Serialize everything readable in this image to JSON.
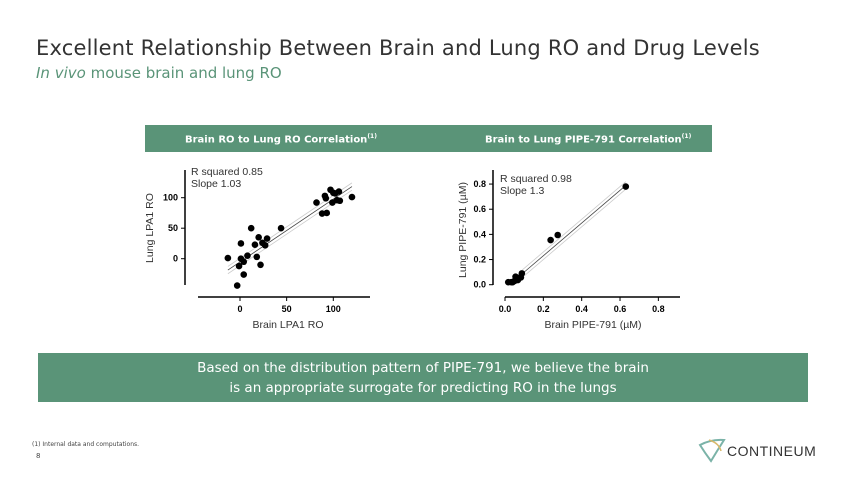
{
  "header": {
    "title": "Excellent Relationship Between Brain and Lung RO and Drug Levels",
    "subtitle_italic": "In vivo",
    "subtitle_rest": " mouse brain and lung RO"
  },
  "banner": {
    "left": "Brain RO to Lung RO Correlation",
    "right": "Brain to Lung PIPE-791 Correlation",
    "sup": "(1)"
  },
  "conclusion": {
    "line1": "Based on the distribution pattern of PIPE-791, we believe the brain",
    "line2": "is an appropriate surrogate for predicting RO in the lungs"
  },
  "footnote": "(1)   Internal data and computations.",
  "page_number": "8",
  "logo": {
    "text": "CONTINEUM"
  },
  "colors": {
    "accent": "#5a9478",
    "points": "#000000"
  },
  "chart_data": [
    {
      "type": "scatter",
      "xlabel": "Brain LPA1 RO",
      "ylabel": "Lung LPA1 RO",
      "x_ticks": [
        "0",
        "50",
        "100"
      ],
      "y_ticks": [
        "0",
        "50",
        "100"
      ],
      "annotation": [
        "R squared 0.85",
        "Slope 1.03"
      ],
      "r_squared": 0.85,
      "slope": 1.03,
      "points": [
        [
          -13,
          1
        ],
        [
          1,
          25
        ],
        [
          12,
          50
        ],
        [
          1,
          0
        ],
        [
          -1,
          -12
        ],
        [
          4,
          -5
        ],
        [
          4,
          -26
        ],
        [
          -3,
          -44
        ],
        [
          8,
          5
        ],
        [
          18,
          3
        ],
        [
          16,
          23
        ],
        [
          20,
          35
        ],
        [
          24,
          26
        ],
        [
          27,
          22
        ],
        [
          29,
          33
        ],
        [
          22,
          -10
        ],
        [
          44,
          50
        ],
        [
          82,
          92
        ],
        [
          91,
          103
        ],
        [
          92,
          99
        ],
        [
          97,
          113
        ],
        [
          100,
          108
        ],
        [
          99,
          92
        ],
        [
          106,
          110
        ],
        [
          107,
          95
        ],
        [
          104,
          96
        ],
        [
          88,
          74
        ],
        [
          93,
          75
        ],
        [
          120,
          101
        ],
        [
          102,
          107
        ]
      ]
    },
    {
      "type": "scatter",
      "xlabel": "Brain PIPE-791 (µM)",
      "ylabel": "Lung PIPE-791 (µM)",
      "x_ticks": [
        "0.0",
        "0.2",
        "0.4",
        "0.6",
        "0.8"
      ],
      "y_ticks": [
        "0.0",
        "0.2",
        "0.4",
        "0.6",
        "0.8"
      ],
      "annotation": [
        "R squared 0.98",
        "Slope 1.3"
      ],
      "r_squared": 0.98,
      "slope": 1.3,
      "points": [
        [
          0.63,
          0.78
        ],
        [
          0.275,
          0.395
        ],
        [
          0.238,
          0.355
        ],
        [
          0.017,
          0.02
        ],
        [
          0.033,
          0.02
        ],
        [
          0.05,
          0.03
        ],
        [
          0.055,
          0.064
        ],
        [
          0.067,
          0.037
        ],
        [
          0.075,
          0.056
        ],
        [
          0.088,
          0.09
        ],
        [
          0.083,
          0.058
        ],
        [
          0.04,
          0.02
        ]
      ]
    }
  ]
}
